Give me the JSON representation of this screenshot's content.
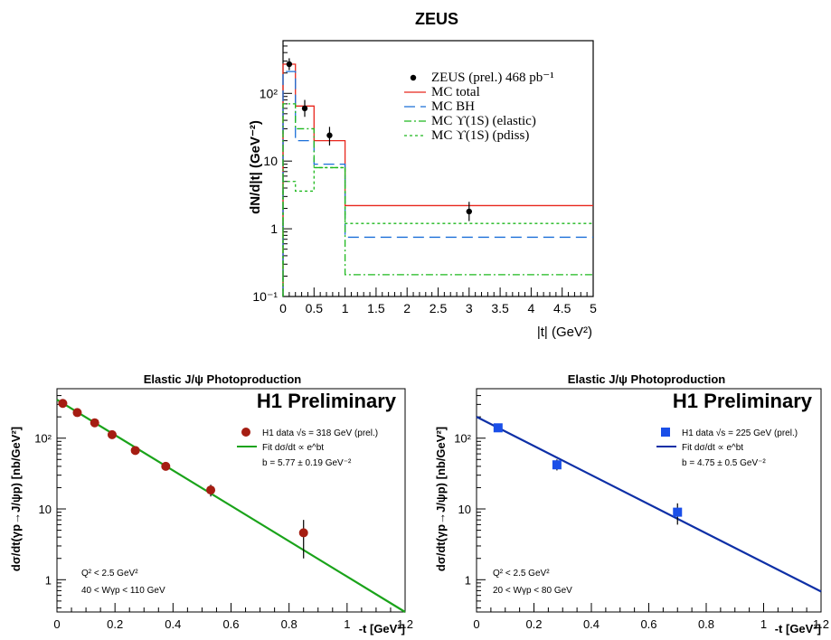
{
  "chart_data": [
    {
      "type": "line",
      "title": "ZEUS",
      "xlabel": "|t| (GeV²)",
      "ylabel": "dN/d|t| (GeV⁻²)",
      "xlim": [
        0,
        5
      ],
      "ylim": [
        0.1,
        600
      ],
      "yscale": "log",
      "x_ticks": [
        "0",
        "0.5",
        "1",
        "1.5",
        "2",
        "2.5",
        "3",
        "3.5",
        "4",
        "4.5",
        "5"
      ],
      "y_ticks": [
        "10⁻¹",
        "1",
        "10",
        "10²"
      ],
      "legend": {
        "position": "top-right",
        "entries": [
          {
            "label": "ZEUS (prel.) 468 pb⁻¹",
            "color": "#000000",
            "style": "dot"
          },
          {
            "label": "MC total",
            "color": "#e8261c",
            "style": "solid"
          },
          {
            "label": "MC BH",
            "color": "#1a6fd8",
            "style": "dash"
          },
          {
            "label": "MC ϒ(1S) (elastic)",
            "color": "#1db81d",
            "style": "dashdot"
          },
          {
            "label": "MC ϒ(1S) (pdiss)",
            "color": "#1db81d",
            "style": "dot"
          }
        ]
      },
      "bin_edges": [
        0,
        0.2,
        0.5,
        1.0,
        5.0
      ],
      "series": [
        {
          "name": "MC total",
          "values": [
            270,
            65,
            20,
            2.2
          ]
        },
        {
          "name": "MC BH",
          "values": [
            210,
            20,
            9,
            0.75
          ]
        },
        {
          "name": "MC ϒ(1S) (elastic)",
          "values": [
            70,
            30,
            8,
            0.21
          ]
        },
        {
          "name": "MC ϒ(1S) (pdiss)",
          "values": [
            5,
            3.6,
            8,
            1.2
          ]
        }
      ],
      "data_points": [
        {
          "x": 0.1,
          "y": 270,
          "err_lo": 220,
          "err_hi": 330
        },
        {
          "x": 0.35,
          "y": 60,
          "err_lo": 45,
          "err_hi": 80
        },
        {
          "x": 0.75,
          "y": 24,
          "err_lo": 17,
          "err_hi": 32
        },
        {
          "x": 3.0,
          "y": 1.8,
          "err_lo": 1.3,
          "err_hi": 2.5
        }
      ]
    },
    {
      "type": "scatter",
      "title": "Elastic J/ψ Photoproduction",
      "watermark": "H1 Preliminary",
      "xlabel": "-t [GeV²]",
      "ylabel": "dσ/dt(γp→J/ψp) [nb/GeV²]",
      "xlim": [
        0,
        1.2
      ],
      "ylim": [
        0.35,
        500
      ],
      "yscale": "log",
      "x_ticks": [
        "0",
        "0.2",
        "0.4",
        "0.6",
        "0.8",
        "1",
        "1.2"
      ],
      "y_ticks": [
        "1",
        "10",
        "10²"
      ],
      "legend": {
        "position": "top-right",
        "entries": [
          {
            "label": "H1 data √s = 318 GeV (prel.)",
            "color": "#a51d12",
            "style": "circle"
          },
          {
            "label": "Fit dσ/dt ∝ e^bt",
            "color": "#1aa31a",
            "style": "solid"
          },
          {
            "label": "b = 5.77 ± 0.19 GeV⁻²",
            "color": "#000000",
            "style": "none"
          }
        ]
      },
      "annotations": [
        "Q² < 2.5 GeV²",
        "40 < Wγp < 110 GeV"
      ],
      "series": [
        {
          "name": "H1 data √s = 318 GeV (prel.)",
          "x": [
            0.02,
            0.07,
            0.13,
            0.19,
            0.27,
            0.375,
            0.53,
            0.85
          ],
          "y": [
            310,
            230,
            165,
            112,
            67,
            40,
            18.5,
            4.6
          ],
          "err_lo": [
            280,
            205,
            150,
            100,
            60,
            35,
            15,
            2.0
          ],
          "err_hi": [
            340,
            255,
            180,
            124,
            74,
            45,
            22,
            7.0
          ]
        },
        {
          "name": "Fit dσ/dt ∝ e^bt",
          "x": [
            0.0,
            1.2
          ],
          "y": [
            350,
            0.35
          ]
        }
      ]
    },
    {
      "type": "scatter",
      "title": "Elastic J/ψ Photoproduction",
      "watermark": "H1 Preliminary",
      "xlabel": "-t [GeV²]",
      "ylabel": "dσ/dt(γp→J/ψp) [nb/GeV²]",
      "xlim": [
        0,
        1.2
      ],
      "ylim": [
        0.35,
        500
      ],
      "yscale": "log",
      "x_ticks": [
        "0",
        "0.2",
        "0.4",
        "0.6",
        "0.8",
        "1",
        "1.2"
      ],
      "y_ticks": [
        "1",
        "10",
        "10²"
      ],
      "legend": {
        "position": "top-right",
        "entries": [
          {
            "label": "H1 data √s = 225 GeV (prel.)",
            "color": "#1a4fe8",
            "style": "square"
          },
          {
            "label": "Fit dσ/dt ∝ e^bt",
            "color": "#0d2fa6",
            "style": "solid"
          },
          {
            "label": "b = 4.75 ± 0.5 GeV⁻²",
            "color": "#000000",
            "style": "none"
          }
        ]
      },
      "annotations": [
        "Q² < 2.5 GeV²",
        "20 < Wγp < 80 GeV"
      ],
      "series": [
        {
          "name": "H1 data √s = 225 GeV (prel.)",
          "x": [
            0.075,
            0.28,
            0.7
          ],
          "y": [
            140,
            42,
            9
          ],
          "err_lo": [
            130,
            35,
            6
          ],
          "err_hi": [
            150,
            50,
            12
          ]
        },
        {
          "name": "Fit dσ/dt ∝ e^bt",
          "x": [
            0.0,
            1.2
          ],
          "y": [
            200,
            0.68
          ]
        }
      ]
    }
  ]
}
